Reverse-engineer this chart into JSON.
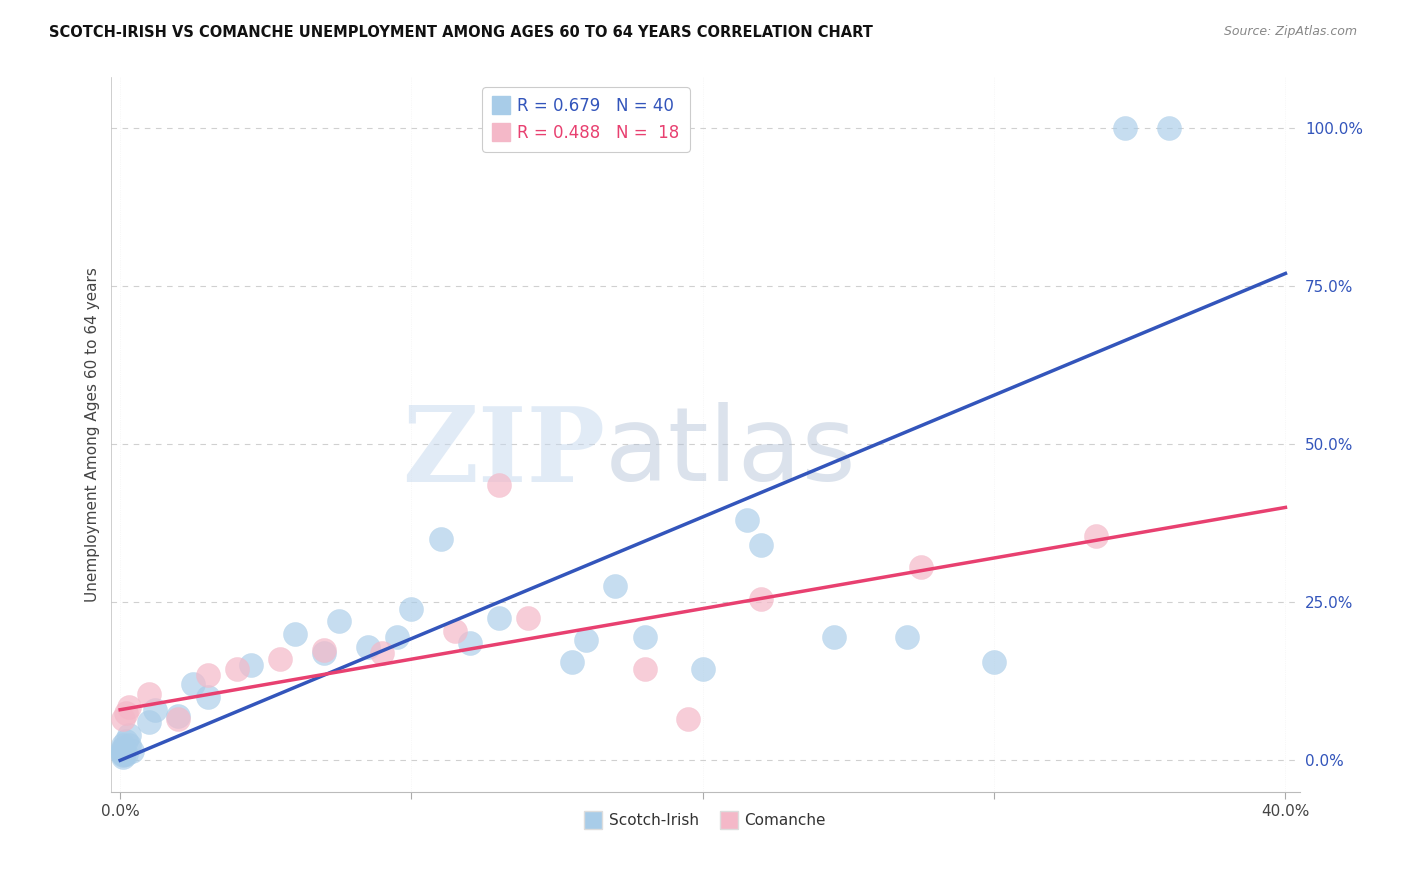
{
  "title": "SCOTCH-IRISH VS COMANCHE UNEMPLOYMENT AMONG AGES 60 TO 64 YEARS CORRELATION CHART",
  "source": "Source: ZipAtlas.com",
  "ylabel": "Unemployment Among Ages 60 to 64 years",
  "xlim": [
    -0.003,
    0.405
  ],
  "ylim": [
    -0.05,
    1.08
  ],
  "xticks": [
    0.0,
    0.1,
    0.2,
    0.3,
    0.4
  ],
  "xtick_labels": [
    "0.0%",
    "",
    "",
    "",
    "40.0%"
  ],
  "ytick_labels_right": [
    "100.0%",
    "75.0%",
    "50.0%",
    "25.0%",
    "0.0%"
  ],
  "ytick_vals_right": [
    1.0,
    0.75,
    0.5,
    0.25,
    0.0
  ],
  "watermark_zip": "ZIP",
  "watermark_atlas": "atlas",
  "scotch_irish_color": "#a8cce8",
  "comanche_color": "#f4b8c8",
  "scotch_irish_line_color": "#3355bb",
  "comanche_line_color": "#e84070",
  "scotch_irish_R": 0.679,
  "scotch_irish_N": 40,
  "comanche_R": 0.488,
  "comanche_N": 18,
  "scotch_irish_x": [
    0.001,
    0.001,
    0.001,
    0.001,
    0.001,
    0.001,
    0.001,
    0.001,
    0.002,
    0.002,
    0.003,
    0.003,
    0.004,
    0.01,
    0.012,
    0.02,
    0.025,
    0.03,
    0.045,
    0.06,
    0.07,
    0.075,
    0.085,
    0.095,
    0.1,
    0.11,
    0.12,
    0.13,
    0.155,
    0.16,
    0.17,
    0.18,
    0.2,
    0.215,
    0.22,
    0.245,
    0.27,
    0.3,
    0.345,
    0.36
  ],
  "scotch_irish_y": [
    0.005,
    0.008,
    0.01,
    0.012,
    0.015,
    0.018,
    0.02,
    0.025,
    0.01,
    0.03,
    0.025,
    0.04,
    0.015,
    0.06,
    0.08,
    0.07,
    0.12,
    0.1,
    0.15,
    0.2,
    0.17,
    0.22,
    0.18,
    0.195,
    0.24,
    0.35,
    0.185,
    0.225,
    0.155,
    0.19,
    0.275,
    0.195,
    0.145,
    0.38,
    0.34,
    0.195,
    0.195,
    0.155,
    1.0,
    1.0
  ],
  "comanche_x": [
    0.001,
    0.002,
    0.003,
    0.01,
    0.02,
    0.03,
    0.04,
    0.055,
    0.07,
    0.09,
    0.115,
    0.13,
    0.14,
    0.18,
    0.195,
    0.22,
    0.275,
    0.335
  ],
  "comanche_y": [
    0.065,
    0.075,
    0.085,
    0.105,
    0.065,
    0.135,
    0.145,
    0.16,
    0.175,
    0.17,
    0.205,
    0.435,
    0.225,
    0.145,
    0.065,
    0.255,
    0.305,
    0.355
  ],
  "si_line_y0": 0.0,
  "si_line_y1": 0.77,
  "co_line_y0": 0.08,
  "co_line_y1": 0.4,
  "background_color": "#ffffff",
  "grid_color": "#d0d0d0"
}
